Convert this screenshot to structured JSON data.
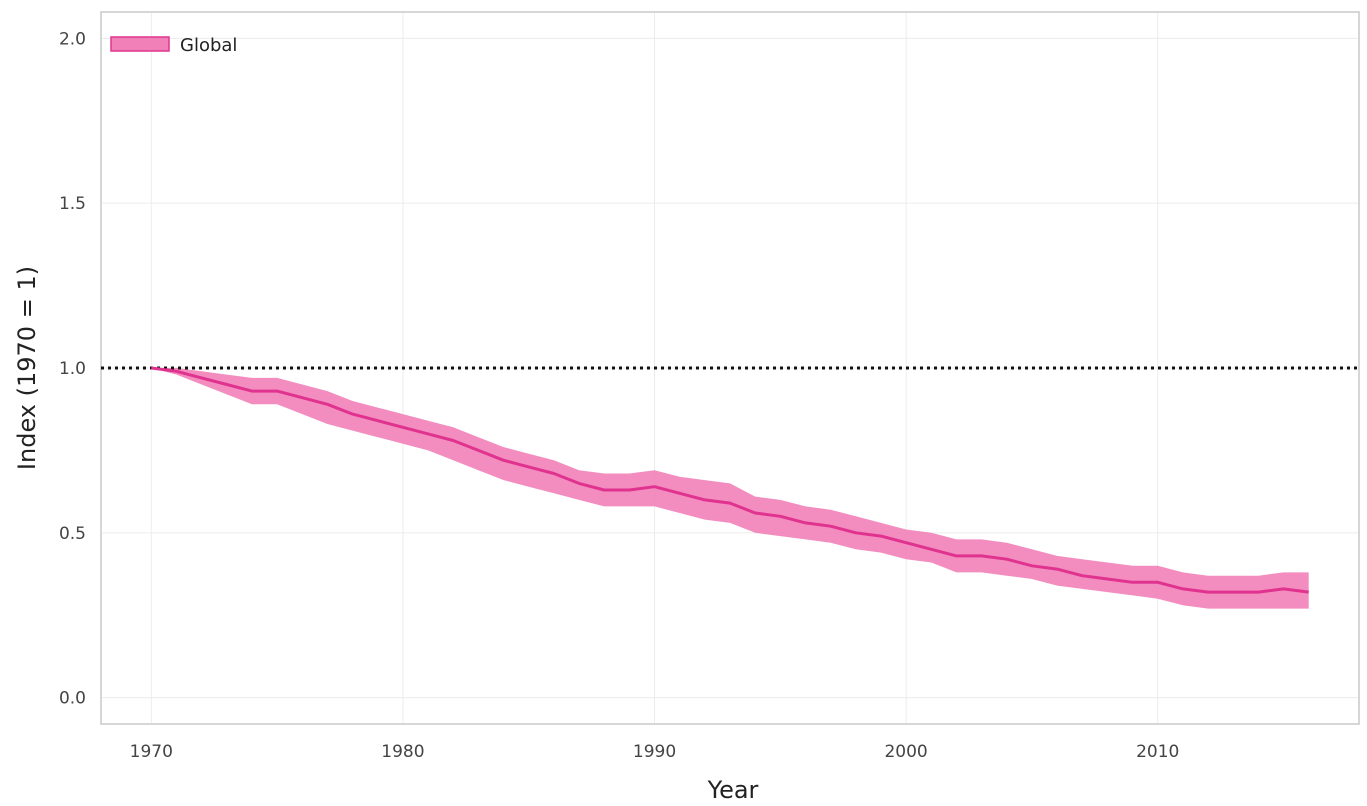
{
  "chart_data": {
    "type": "line",
    "title": "",
    "xlabel": "Year",
    "ylabel": "Index (1970 = 1)",
    "xlim": [
      1968,
      2018
    ],
    "ylim": [
      -0.08,
      2.08
    ],
    "x_ticks": [
      "1970",
      "1980",
      "1990",
      "2000",
      "2010"
    ],
    "y_ticks": [
      "0.0",
      "0.5",
      "1.0",
      "1.5",
      "2.0"
    ],
    "grid": true,
    "legend_position": "top-left",
    "reference_line": {
      "y": 1.0,
      "style": "dotted"
    },
    "series": [
      {
        "name": "Global",
        "color": "#e0338f",
        "band_color": "#f280b8",
        "x": [
          1970,
          1971,
          1972,
          1973,
          1974,
          1975,
          1976,
          1977,
          1978,
          1979,
          1980,
          1981,
          1982,
          1983,
          1984,
          1985,
          1986,
          1987,
          1988,
          1989,
          1990,
          1991,
          1992,
          1993,
          1994,
          1995,
          1996,
          1997,
          1998,
          1999,
          2000,
          2001,
          2002,
          2003,
          2004,
          2005,
          2006,
          2007,
          2008,
          2009,
          2010,
          2011,
          2012,
          2013,
          2014,
          2015,
          2016
        ],
        "values": [
          1.0,
          0.99,
          0.97,
          0.95,
          0.93,
          0.93,
          0.91,
          0.89,
          0.86,
          0.84,
          0.82,
          0.8,
          0.78,
          0.75,
          0.72,
          0.7,
          0.68,
          0.65,
          0.63,
          0.63,
          0.64,
          0.62,
          0.6,
          0.59,
          0.56,
          0.55,
          0.53,
          0.52,
          0.5,
          0.49,
          0.47,
          0.45,
          0.43,
          0.43,
          0.42,
          0.4,
          0.39,
          0.37,
          0.36,
          0.35,
          0.35,
          0.33,
          0.32,
          0.32,
          0.32,
          0.33,
          0.32
        ],
        "lower": [
          1.0,
          0.98,
          0.95,
          0.92,
          0.89,
          0.89,
          0.86,
          0.83,
          0.81,
          0.79,
          0.77,
          0.75,
          0.72,
          0.69,
          0.66,
          0.64,
          0.62,
          0.6,
          0.58,
          0.58,
          0.58,
          0.56,
          0.54,
          0.53,
          0.5,
          0.49,
          0.48,
          0.47,
          0.45,
          0.44,
          0.42,
          0.41,
          0.38,
          0.38,
          0.37,
          0.36,
          0.34,
          0.33,
          0.32,
          0.31,
          0.3,
          0.28,
          0.27,
          0.27,
          0.27,
          0.27,
          0.27
        ],
        "upper": [
          1.0,
          1.0,
          0.99,
          0.98,
          0.97,
          0.97,
          0.95,
          0.93,
          0.9,
          0.88,
          0.86,
          0.84,
          0.82,
          0.79,
          0.76,
          0.74,
          0.72,
          0.69,
          0.68,
          0.68,
          0.69,
          0.67,
          0.66,
          0.65,
          0.61,
          0.6,
          0.58,
          0.57,
          0.55,
          0.53,
          0.51,
          0.5,
          0.48,
          0.48,
          0.47,
          0.45,
          0.43,
          0.42,
          0.41,
          0.4,
          0.4,
          0.38,
          0.37,
          0.37,
          0.37,
          0.38,
          0.38
        ]
      }
    ]
  }
}
